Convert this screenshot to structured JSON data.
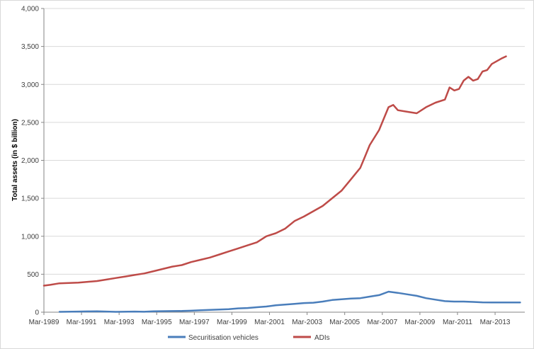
{
  "chart_data": {
    "type": "line",
    "title": "",
    "xlabel": "",
    "ylabel": "Total assets (in $ billion)",
    "ylim": [
      0,
      4000
    ],
    "y_ticks": [
      0,
      500,
      1000,
      1500,
      2000,
      2500,
      3000,
      3500,
      4000
    ],
    "y_tick_labels": [
      "0",
      "500",
      "1,000",
      "1,500",
      "2,000",
      "2,500",
      "3,000",
      "3,500",
      "4,000"
    ],
    "x_range": [
      1989.17,
      2014.75
    ],
    "x_ticks": [
      1989.17,
      1991.17,
      1993.17,
      1995.17,
      1997.17,
      1999.17,
      2001.17,
      2003.17,
      2005.17,
      2007.17,
      2009.17,
      2011.17,
      2013.17
    ],
    "x_tick_labels": [
      "Mar-1989",
      "Mar-1991",
      "Mar-1993",
      "Mar-1995",
      "Mar-1997",
      "Mar-1999",
      "Mar-2001",
      "Mar-2003",
      "Mar-2005",
      "Mar-2007",
      "Mar-2009",
      "Mar-2011",
      "Mar-2013"
    ],
    "grid": "horizontal",
    "legend_position": "bottom",
    "series": [
      {
        "name": "Securitisation vehicles",
        "color": "#4a7ebb",
        "x": [
          1990.0,
          1991.0,
          1991.5,
          1992.0,
          1992.5,
          1993.0,
          1994.0,
          1994.5,
          1995.0,
          1996.0,
          1996.5,
          1997.0,
          1997.5,
          1998.0,
          1998.5,
          1999.0,
          1999.5,
          2000.0,
          2000.5,
          2001.0,
          2001.5,
          2002.0,
          2002.5,
          2003.0,
          2003.5,
          2004.0,
          2004.5,
          2005.0,
          2005.5,
          2006.0,
          2006.5,
          2007.0,
          2007.17,
          2007.5,
          2008.0,
          2008.5,
          2009.0,
          2009.5,
          2010.0,
          2010.5,
          2011.0,
          2011.5,
          2012.0,
          2012.5,
          2013.0,
          2013.5,
          2014.0,
          2014.5
        ],
        "y": [
          5,
          8,
          10,
          12,
          8,
          5,
          8,
          6,
          12,
          15,
          16,
          20,
          25,
          30,
          35,
          40,
          50,
          55,
          65,
          75,
          90,
          100,
          110,
          120,
          125,
          140,
          160,
          170,
          180,
          185,
          205,
          225,
          240,
          270,
          255,
          235,
          215,
          185,
          165,
          145,
          140,
          140,
          135,
          130,
          128,
          128,
          128,
          128
        ]
      },
      {
        "name": "ADIs",
        "color": "#be4b48",
        "x": [
          1989.17,
          1989.5,
          1990.0,
          1990.5,
          1991.0,
          1991.5,
          1992.0,
          1992.5,
          1993.0,
          1993.5,
          1994.0,
          1994.5,
          1995.0,
          1995.5,
          1996.0,
          1996.5,
          1997.0,
          1997.5,
          1998.0,
          1998.5,
          1999.0,
          1999.5,
          2000.0,
          2000.5,
          2001.0,
          2001.25,
          2001.5,
          2002.0,
          2002.5,
          2003.0,
          2003.5,
          2004.0,
          2004.5,
          2005.0,
          2005.5,
          2006.0,
          2006.25,
          2006.5,
          2007.0,
          2007.5,
          2007.75,
          2008.0,
          2008.5,
          2009.0,
          2009.5,
          2010.0,
          2010.5,
          2010.75,
          2011.0,
          2011.25,
          2011.5,
          2011.75,
          2012.0,
          2012.25,
          2012.5,
          2012.75,
          2013.0,
          2013.5,
          2013.75
        ],
        "y": [
          350,
          360,
          380,
          385,
          390,
          400,
          410,
          430,
          450,
          470,
          490,
          510,
          540,
          570,
          600,
          620,
          660,
          690,
          720,
          760,
          800,
          840,
          880,
          920,
          1000,
          1020,
          1040,
          1100,
          1200,
          1260,
          1330,
          1400,
          1500,
          1600,
          1750,
          1900,
          2050,
          2200,
          2400,
          2700,
          2730,
          2660,
          2640,
          2620,
          2700,
          2760,
          2800,
          2960,
          2920,
          2940,
          3050,
          3100,
          3050,
          3070,
          3170,
          3190,
          3270,
          3340,
          3370
        ]
      }
    ]
  }
}
